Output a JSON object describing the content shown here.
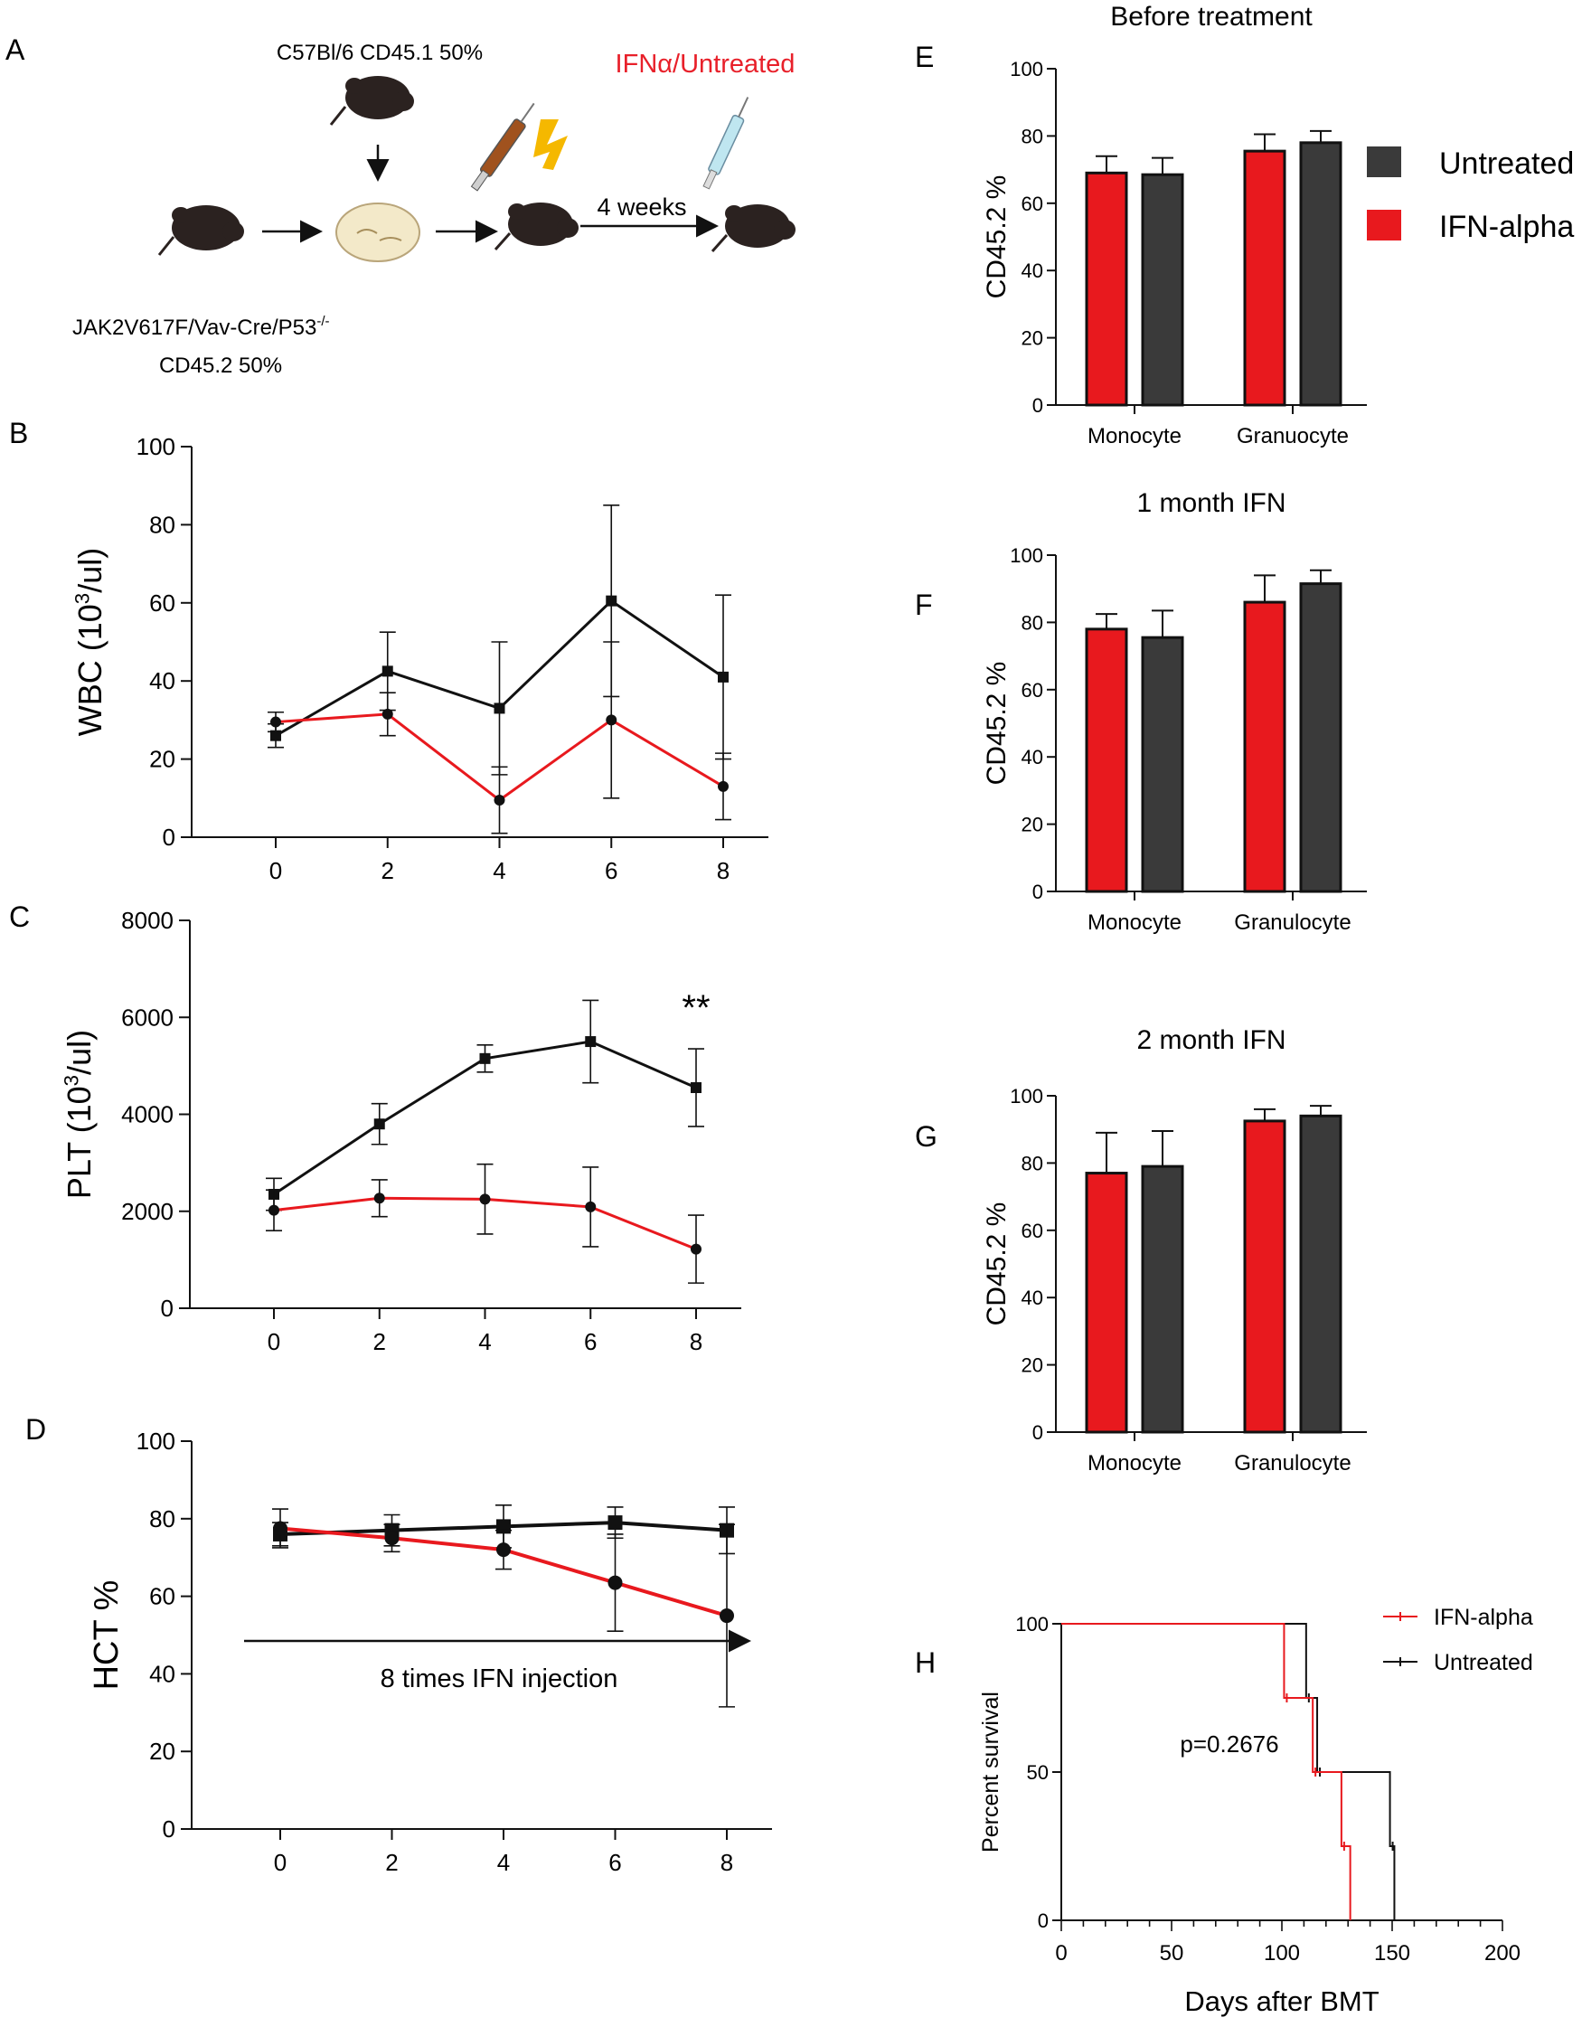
{
  "panel_labels": {
    "A": "A",
    "B": "B",
    "C": "C",
    "D": "D",
    "E": "E",
    "F": "F",
    "G": "G",
    "H": "H"
  },
  "schematic": {
    "donor_top": "C57Bl/6 CD45.1 50%",
    "donor_left_line1": "JAK2V617F/Vav-Cre/P53",
    "donor_left_sup": "-/-",
    "donor_left_line2": "CD45.2 50%",
    "treatment": "IFNα/Untreated",
    "interval": "4 weeks",
    "colors": {
      "treatment_text": "#e8202a",
      "lightning": "#f5b800",
      "mouse": "#2b2220"
    }
  },
  "colors": {
    "ifn": "#e8191e",
    "untreated": "#111111",
    "bar_untreated": "#3a3a3a"
  },
  "legend_bars": {
    "untreated": "Untreated",
    "ifn": "IFN-alpha"
  },
  "legend_survival": {
    "ifn": "IFN-alpha",
    "untreated": "Untreated"
  },
  "x_arrow_label": "8 times IFN injection",
  "significance_C": "**",
  "chart_data": [
    {
      "id": "B",
      "type": "line",
      "ylabel": "WBC (10³/ul)",
      "ylim": [
        0,
        100
      ],
      "yticks": [
        0,
        20,
        40,
        60,
        80,
        100
      ],
      "x": [
        0,
        2,
        4,
        6,
        8
      ],
      "series": [
        {
          "name": "Untreated",
          "marker": "square",
          "values": [
            26,
            42.5,
            33,
            60.5,
            41
          ],
          "errors": [
            3,
            10,
            17,
            24.5,
            21
          ]
        },
        {
          "name": "IFN-alpha",
          "marker": "circle",
          "values": [
            29.5,
            31.5,
            9.5,
            30,
            13
          ],
          "errors": [
            2.5,
            5.5,
            8.5,
            20,
            8.5
          ]
        }
      ]
    },
    {
      "id": "C",
      "type": "line",
      "ylabel": "PLT (10³/ul)",
      "ylim": [
        0,
        8000
      ],
      "yticks": [
        0,
        2000,
        4000,
        6000,
        8000
      ],
      "x": [
        0,
        2,
        4,
        6,
        8
      ],
      "series": [
        {
          "name": "Untreated",
          "marker": "square",
          "values": [
            2350,
            3800,
            5150,
            5500,
            4550
          ],
          "errors": [
            330,
            420,
            280,
            850,
            800
          ]
        },
        {
          "name": "IFN-alpha",
          "marker": "circle",
          "values": [
            2020,
            2270,
            2250,
            2090,
            1220
          ],
          "errors": [
            420,
            380,
            720,
            820,
            700
          ]
        }
      ]
    },
    {
      "id": "D",
      "type": "line",
      "ylabel": "HCT %",
      "ylim": [
        0,
        100
      ],
      "yticks": [
        0,
        20,
        40,
        60,
        80,
        100
      ],
      "x": [
        0,
        2,
        4,
        6,
        8
      ],
      "series": [
        {
          "name": "Untreated",
          "marker": "square",
          "values": [
            76,
            77,
            78,
            79,
            77
          ],
          "errors": [
            3,
            4,
            5.5,
            4,
            6
          ]
        },
        {
          "name": "IFN-alpha",
          "marker": "circle",
          "values": [
            77.5,
            75,
            72,
            63.5,
            55
          ],
          "errors": [
            5,
            3.5,
            5,
            12.5,
            23.5
          ]
        }
      ]
    },
    {
      "id": "E",
      "type": "bar",
      "title": "Before treatment",
      "ylabel": "CD45.2 %",
      "ylim": [
        0,
        100
      ],
      "yticks": [
        0,
        20,
        40,
        60,
        80,
        100
      ],
      "categories": [
        "Monocyte",
        "Granuocyte"
      ],
      "series": [
        {
          "name": "IFN-alpha",
          "values": [
            69,
            75.5
          ],
          "errors": [
            5,
            5
          ]
        },
        {
          "name": "Untreated",
          "values": [
            68.5,
            78
          ],
          "errors": [
            5,
            3.5
          ]
        }
      ]
    },
    {
      "id": "F",
      "type": "bar",
      "title": "1 month IFN",
      "ylabel": "CD45.2 %",
      "ylim": [
        0,
        100
      ],
      "yticks": [
        0,
        20,
        40,
        60,
        80,
        100
      ],
      "categories": [
        "Monocyte",
        "Granulocyte"
      ],
      "series": [
        {
          "name": "IFN-alpha",
          "values": [
            78,
            86
          ],
          "errors": [
            4.5,
            8
          ]
        },
        {
          "name": "Untreated",
          "values": [
            75.5,
            91.5
          ],
          "errors": [
            8,
            4
          ]
        }
      ]
    },
    {
      "id": "G",
      "type": "bar",
      "title": "2 month IFN",
      "ylabel": "CD45.2 %",
      "ylim": [
        0,
        100
      ],
      "yticks": [
        0,
        20,
        40,
        60,
        80,
        100
      ],
      "categories": [
        "Monocyte",
        "Granulocyte"
      ],
      "series": [
        {
          "name": "IFN-alpha",
          "values": [
            77,
            92.5
          ],
          "errors": [
            12,
            3.5
          ]
        },
        {
          "name": "Untreated",
          "values": [
            79,
            94
          ],
          "errors": [
            10.5,
            3
          ]
        }
      ]
    },
    {
      "id": "H",
      "type": "line",
      "subtype": "survival",
      "xlabel": "Days after BMT",
      "ylabel": "Percent survival",
      "xlim": [
        0,
        200
      ],
      "ylim": [
        0,
        100
      ],
      "xticks": [
        0,
        50,
        100,
        150,
        200
      ],
      "yticks": [
        0,
        50,
        100
      ],
      "annotation": "p=0.2676",
      "series": [
        {
          "name": "IFN-alpha",
          "steps": [
            [
              0,
              100
            ],
            [
              101,
              100
            ],
            [
              101,
              75
            ],
            [
              114,
              75
            ],
            [
              114,
              50
            ],
            [
              127,
              50
            ],
            [
              127,
              25
            ],
            [
              131,
              25
            ],
            [
              131,
              0
            ]
          ],
          "censor": [
            [
              101,
              75
            ],
            [
              114,
              50
            ],
            [
              127,
              25
            ]
          ]
        },
        {
          "name": "Untreated",
          "steps": [
            [
              0,
              100
            ],
            [
              111,
              100
            ],
            [
              111,
              75
            ],
            [
              116,
              75
            ],
            [
              116,
              50
            ],
            [
              149,
              50
            ],
            [
              149,
              25
            ],
            [
              151,
              25
            ],
            [
              151,
              0
            ]
          ],
          "censor": [
            [
              111,
              75
            ],
            [
              116,
              50
            ],
            [
              149,
              25
            ]
          ]
        }
      ]
    }
  ]
}
